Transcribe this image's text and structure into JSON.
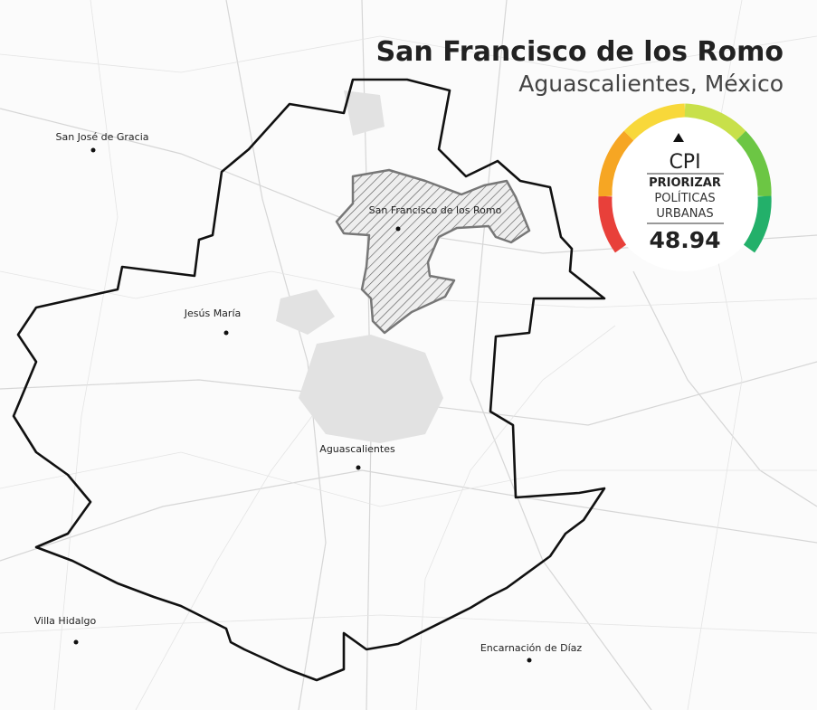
{
  "header": {
    "title": "San Francisco de los Romo",
    "subtitle": "Aguascalientes, México"
  },
  "municipality": {
    "label": "San Francisco de los Romo"
  },
  "places": [
    {
      "label": "San José de Gracia"
    },
    {
      "label": "Jesús María"
    },
    {
      "label": "Aguascalientes"
    },
    {
      "label": "Villa Hidalgo"
    },
    {
      "label": "Encarnación de Díaz"
    }
  ],
  "gauge": {
    "label": "CPI",
    "category": "PRIORIZAR",
    "description": [
      "POLÍTICAS",
      "URBANAS"
    ],
    "value": "48.94"
  }
}
